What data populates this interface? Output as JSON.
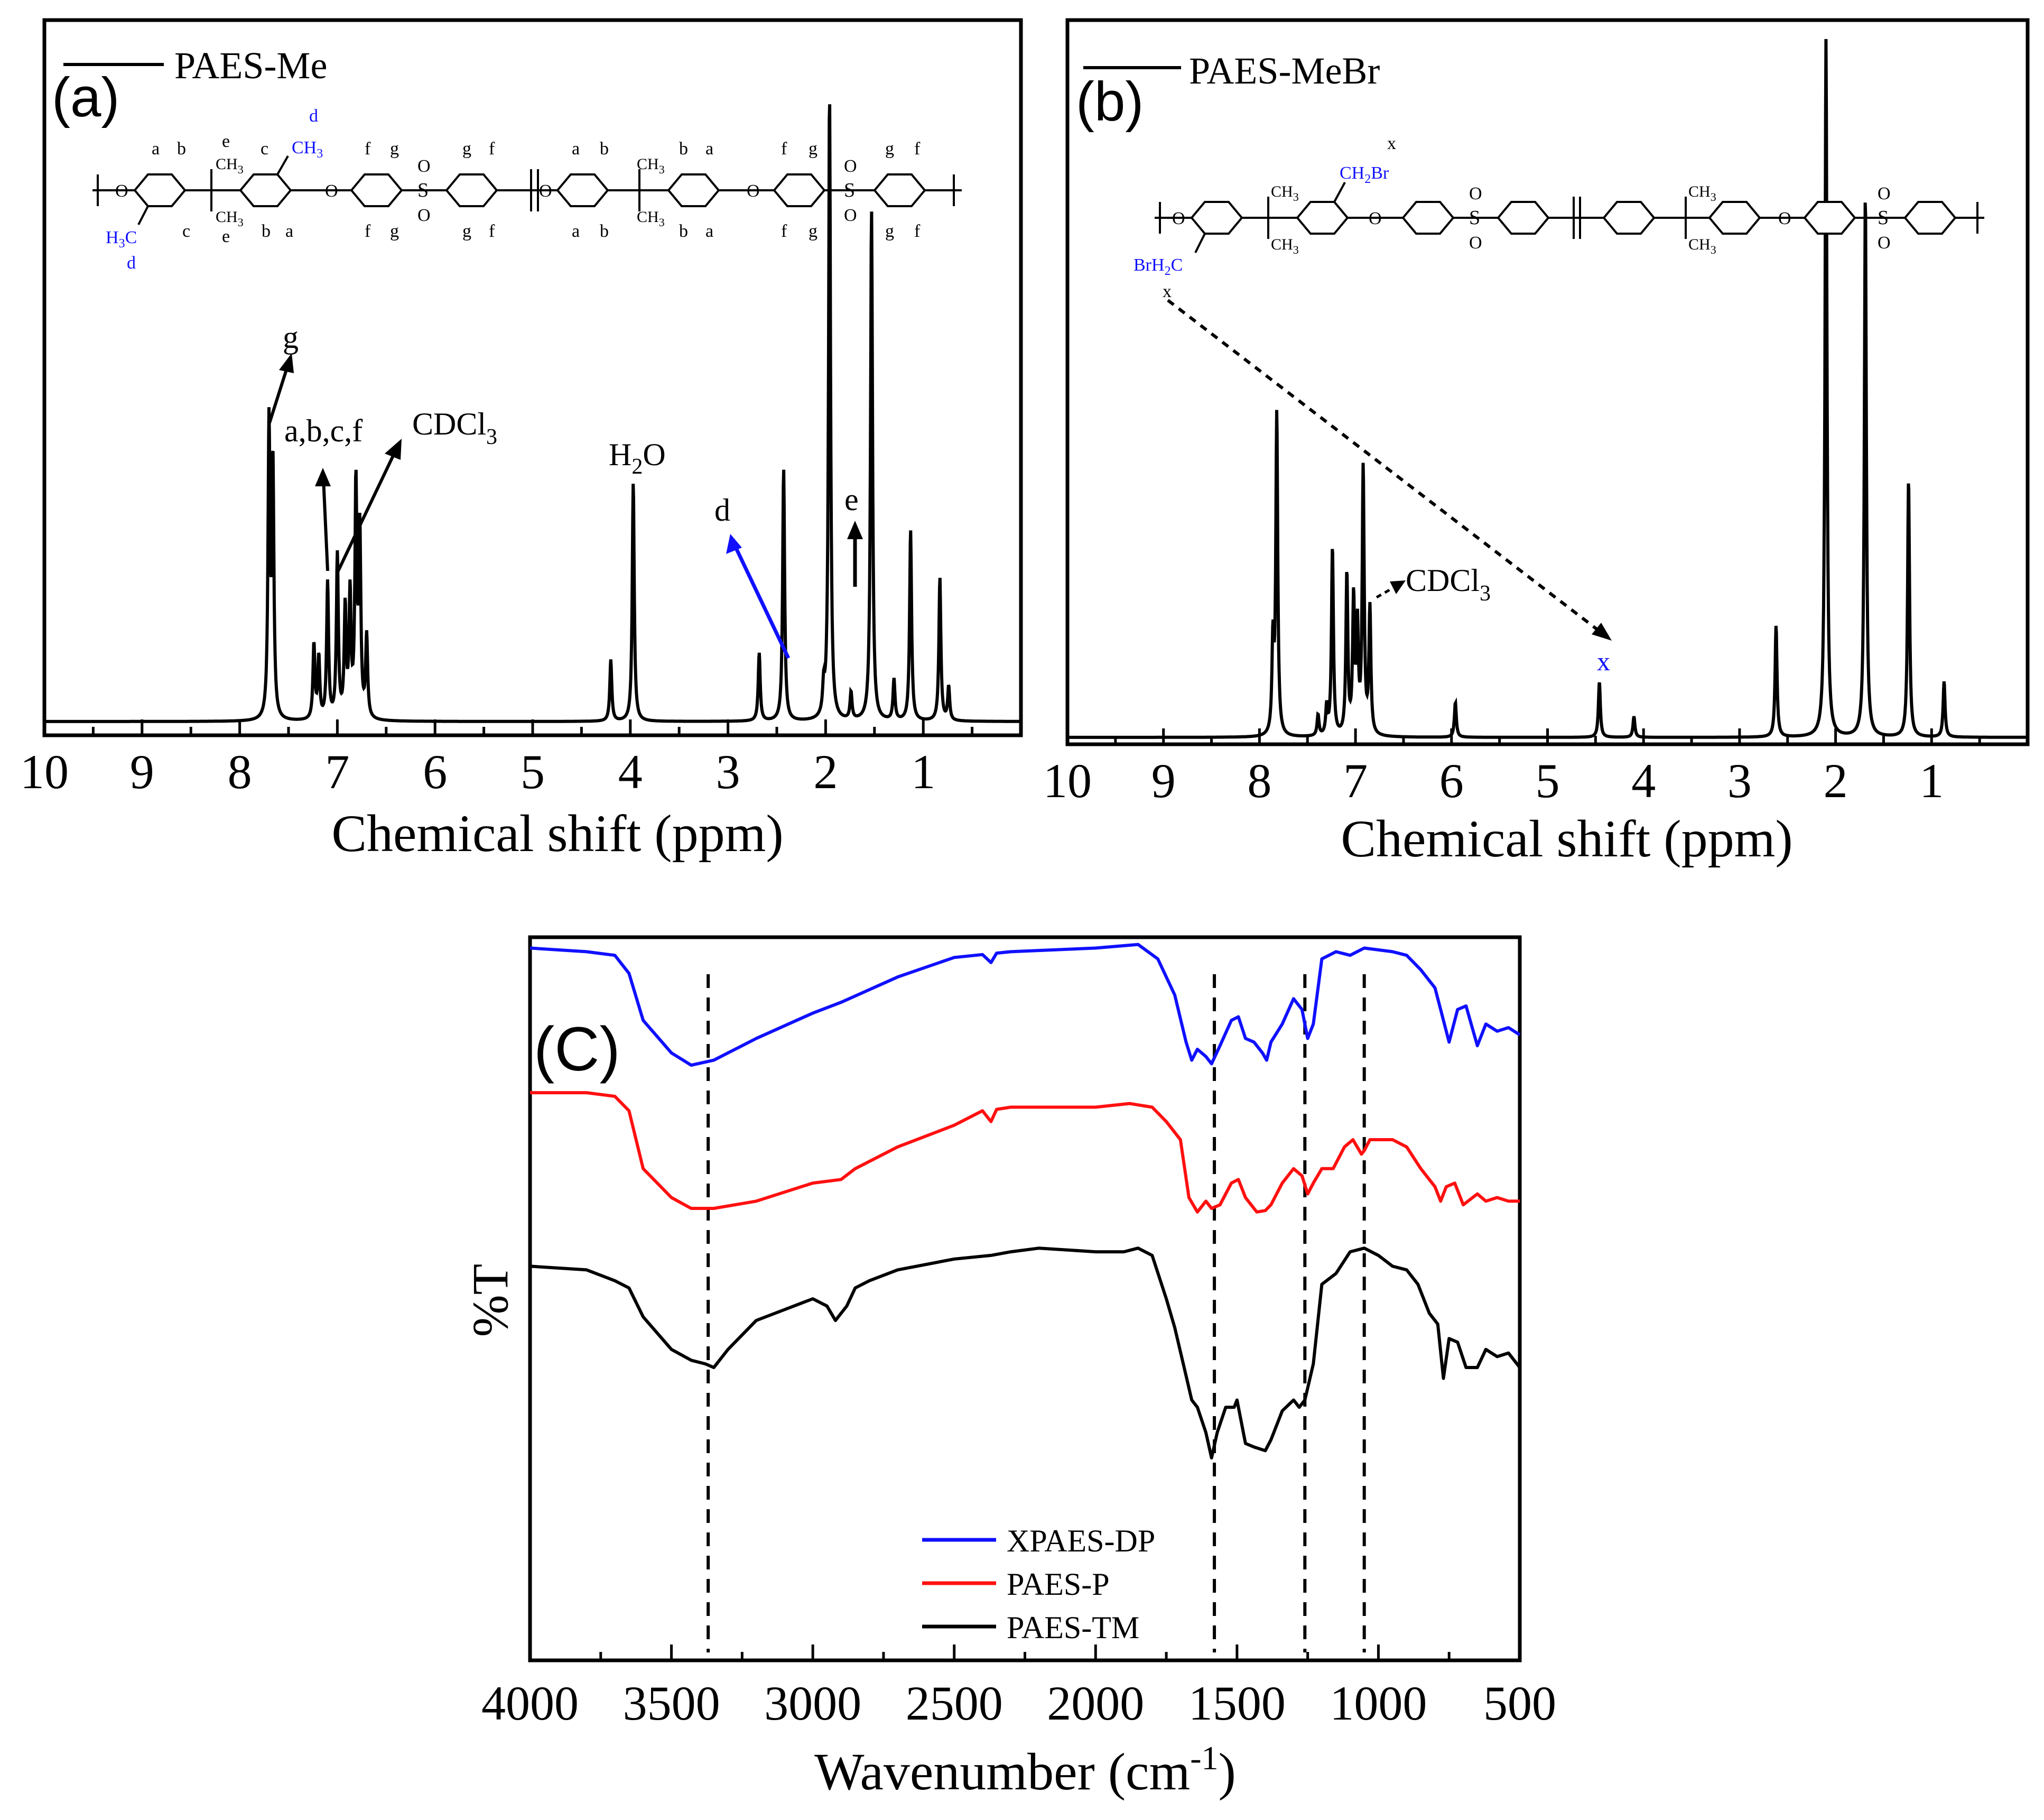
{
  "chart_data": [
    {
      "id": "a",
      "type": "line",
      "panel_label": "(a)",
      "legend": "PAES-Me",
      "xlabel": "Chemical shift (ppm)",
      "xlim": [
        10,
        0
      ],
      "xticks": [
        10,
        9,
        8,
        7,
        6,
        5,
        4,
        3,
        2,
        1
      ],
      "peaks": [
        {
          "ppm": 7.7,
          "h": 0.43
        },
        {
          "ppm": 7.66,
          "h": 0.37
        },
        {
          "ppm": 7.24,
          "h": 0.11
        },
        {
          "ppm": 7.19,
          "h": 0.09
        },
        {
          "ppm": 7.1,
          "h": 0.2
        },
        {
          "ppm": 7.0,
          "h": 0.24
        },
        {
          "ppm": 6.92,
          "h": 0.16
        },
        {
          "ppm": 6.87,
          "h": 0.18
        },
        {
          "ppm": 6.81,
          "h": 0.34
        },
        {
          "ppm": 6.77,
          "h": 0.27
        },
        {
          "ppm": 6.7,
          "h": 0.12
        },
        {
          "ppm": 4.2,
          "h": 0.09
        },
        {
          "ppm": 3.97,
          "h": 0.35
        },
        {
          "ppm": 2.68,
          "h": 0.1
        },
        {
          "ppm": 2.43,
          "h": 0.37
        },
        {
          "ppm": 2.02,
          "h": 0.04
        },
        {
          "ppm": 1.96,
          "h": 0.92
        },
        {
          "ppm": 1.74,
          "h": 0.04
        },
        {
          "ppm": 1.53,
          "h": 0.75
        },
        {
          "ppm": 1.3,
          "h": 0.06
        },
        {
          "ppm": 1.13,
          "h": 0.28
        },
        {
          "ppm": 0.83,
          "h": 0.21
        },
        {
          "ppm": 0.74,
          "h": 0.05
        }
      ],
      "annotations": [
        {
          "text": "g"
        },
        {
          "text": "a,b,c,f"
        },
        {
          "text": "CDCl3"
        },
        {
          "text": "H2O"
        },
        {
          "text": "d"
        },
        {
          "text": "e"
        }
      ]
    },
    {
      "id": "b",
      "type": "line",
      "panel_label": "(b)",
      "legend": "PAES-MeBr",
      "xlabel": "Chemical shift (ppm)",
      "xlim": [
        10,
        0
      ],
      "xticks": [
        10,
        9,
        8,
        7,
        6,
        5,
        4,
        3,
        2,
        1
      ],
      "peaks": [
        {
          "ppm": 7.86,
          "h": 0.13
        },
        {
          "ppm": 7.82,
          "h": 0.46
        },
        {
          "ppm": 7.39,
          "h": 0.03
        },
        {
          "ppm": 7.3,
          "h": 0.04
        },
        {
          "ppm": 7.24,
          "h": 0.27
        },
        {
          "ppm": 7.09,
          "h": 0.23
        },
        {
          "ppm": 7.02,
          "h": 0.19
        },
        {
          "ppm": 6.98,
          "h": 0.15
        },
        {
          "ppm": 6.92,
          "h": 0.38
        },
        {
          "ppm": 6.85,
          "h": 0.18
        },
        {
          "ppm": 5.96,
          "h": 0.05
        },
        {
          "ppm": 4.46,
          "h": 0.08
        },
        {
          "ppm": 4.1,
          "h": 0.03
        },
        {
          "ppm": 2.62,
          "h": 0.16
        },
        {
          "ppm": 2.1,
          "h": 1.0
        },
        {
          "ppm": 1.69,
          "h": 0.78
        },
        {
          "ppm": 1.24,
          "h": 0.37
        },
        {
          "ppm": 0.87,
          "h": 0.08
        }
      ],
      "annotations": [
        {
          "text": "CDCl3"
        },
        {
          "text": "x"
        }
      ]
    },
    {
      "id": "c",
      "type": "line",
      "panel_label": "(C)",
      "ylabel": "%T",
      "xlabel": "Wavenumber (cm-1)",
      "xlim": [
        4000,
        500
      ],
      "xticks": [
        4000,
        3500,
        3000,
        2500,
        2000,
        1500,
        1000,
        500
      ],
      "reference_lines": [
        3370,
        1580,
        1260,
        1050
      ],
      "series": [
        {
          "name": "XPAES-DP",
          "color": "#1010ff",
          "x": [
            4000,
            3800,
            3700,
            3650,
            3600,
            3500,
            3430,
            3350,
            3200,
            3000,
            2900,
            2700,
            2500,
            2400,
            2370,
            2350,
            2300,
            2000,
            1850,
            1780,
            1720,
            1680,
            1660,
            1640,
            1610,
            1590,
            1560,
            1520,
            1495,
            1470,
            1440,
            1410,
            1395,
            1380,
            1340,
            1300,
            1270,
            1250,
            1230,
            1200,
            1150,
            1100,
            1050,
            950,
            900,
            850,
            800,
            780,
            750,
            720,
            690,
            650,
            620,
            580,
            540,
            500
          ],
          "y": [
            0.985,
            0.98,
            0.975,
            0.95,
            0.885,
            0.84,
            0.823,
            0.83,
            0.86,
            0.895,
            0.91,
            0.945,
            0.972,
            0.976,
            0.965,
            0.978,
            0.98,
            0.985,
            0.99,
            0.97,
            0.92,
            0.855,
            0.83,
            0.845,
            0.835,
            0.825,
            0.85,
            0.885,
            0.89,
            0.86,
            0.855,
            0.84,
            0.83,
            0.855,
            0.88,
            0.915,
            0.9,
            0.86,
            0.88,
            0.97,
            0.98,
            0.975,
            0.985,
            0.98,
            0.975,
            0.955,
            0.93,
            0.9,
            0.855,
            0.9,
            0.905,
            0.85,
            0.88,
            0.87,
            0.875,
            0.865
          ]
        },
        {
          "name": "PAES-P",
          "color": "#ff1010",
          "x": [
            4000,
            3800,
            3700,
            3650,
            3600,
            3500,
            3430,
            3350,
            3200,
            3000,
            2900,
            2850,
            2700,
            2500,
            2400,
            2370,
            2350,
            2300,
            2000,
            1880,
            1800,
            1750,
            1700,
            1670,
            1640,
            1610,
            1590,
            1560,
            1520,
            1495,
            1470,
            1430,
            1400,
            1380,
            1340,
            1300,
            1270,
            1250,
            1230,
            1200,
            1160,
            1120,
            1090,
            1060,
            1050,
            1030,
            980,
            950,
            900,
            850,
            800,
            780,
            760,
            730,
            700,
            650,
            620,
            580,
            540,
            500
          ],
          "y": [
            0.785,
            0.785,
            0.78,
            0.76,
            0.68,
            0.64,
            0.625,
            0.625,
            0.635,
            0.66,
            0.665,
            0.68,
            0.71,
            0.74,
            0.76,
            0.745,
            0.762,
            0.765,
            0.765,
            0.77,
            0.765,
            0.745,
            0.72,
            0.64,
            0.62,
            0.635,
            0.625,
            0.63,
            0.66,
            0.665,
            0.64,
            0.62,
            0.622,
            0.63,
            0.66,
            0.68,
            0.67,
            0.645,
            0.66,
            0.68,
            0.68,
            0.71,
            0.72,
            0.7,
            0.705,
            0.72,
            0.72,
            0.72,
            0.71,
            0.68,
            0.655,
            0.635,
            0.655,
            0.66,
            0.63,
            0.645,
            0.635,
            0.64,
            0.635,
            0.635
          ]
        },
        {
          "name": "PAES-TM",
          "color": "#000000",
          "x": [
            4000,
            3800,
            3700,
            3650,
            3600,
            3500,
            3430,
            3380,
            3350,
            3300,
            3200,
            3100,
            3000,
            2950,
            2920,
            2880,
            2850,
            2800,
            2700,
            2500,
            2370,
            2300,
            2200,
            2000,
            1900,
            1850,
            1800,
            1750,
            1720,
            1690,
            1660,
            1640,
            1610,
            1590,
            1570,
            1540,
            1510,
            1500,
            1470,
            1440,
            1400,
            1380,
            1340,
            1300,
            1280,
            1260,
            1230,
            1200,
            1150,
            1100,
            1050,
            1000,
            950,
            900,
            860,
            820,
            790,
            770,
            750,
            720,
            690,
            650,
            620,
            580,
            540,
            500
          ],
          "y": [
            0.545,
            0.54,
            0.525,
            0.515,
            0.475,
            0.43,
            0.415,
            0.41,
            0.405,
            0.43,
            0.47,
            0.485,
            0.5,
            0.49,
            0.47,
            0.49,
            0.515,
            0.525,
            0.54,
            0.555,
            0.56,
            0.565,
            0.57,
            0.565,
            0.565,
            0.57,
            0.56,
            0.5,
            0.46,
            0.41,
            0.36,
            0.35,
            0.315,
            0.28,
            0.315,
            0.35,
            0.35,
            0.36,
            0.3,
            0.295,
            0.29,
            0.305,
            0.345,
            0.36,
            0.35,
            0.36,
            0.41,
            0.52,
            0.535,
            0.565,
            0.57,
            0.56,
            0.545,
            0.54,
            0.52,
            0.48,
            0.465,
            0.39,
            0.445,
            0.44,
            0.405,
            0.405,
            0.43,
            0.42,
            0.425,
            0.405
          ]
        }
      ]
    }
  ],
  "labels": {
    "a": {
      "panel": "(a)",
      "legend": "PAES-Me",
      "xlabel": "Chemical shift (ppm)",
      "ann_g": "g",
      "ann_abcf": "a,b,c,f",
      "ann_cdcl": "CDCl",
      "ann_cdcl_sub": "3",
      "ann_h": "H",
      "ann_h_sub": "2",
      "ann_o": "O",
      "ann_d": "d",
      "ann_e": "e"
    },
    "b": {
      "panel": "(b)",
      "legend": "PAES-MeBr",
      "xlabel": "Chemical shift (ppm)",
      "ann_cdcl": "CDCl",
      "ann_cdcl_sub": "3",
      "ann_x": "x"
    },
    "c": {
      "panel": "(C)",
      "ylabel": "%T",
      "xlabel": "Wavenumber (cm",
      "xlabel_sup": "-1",
      "xlabel_end": ")",
      "legend": [
        "XPAES-DP",
        "PAES-P",
        "PAES-TM"
      ]
    }
  },
  "structures": {
    "a": {
      "O": "O",
      "S": "S",
      "a": "a",
      "b": "b",
      "c": "c",
      "d": "d",
      "e": "e",
      "f": "f",
      "g": "g",
      "CH": "CH",
      "three": "3",
      "H": "H",
      "C": "C"
    },
    "b": {
      "O": "O",
      "S": "S",
      "x": "x",
      "CH": "CH",
      "three": "3",
      "two": "2",
      "Br": "Br",
      "BrH": "BrH",
      "C": "C"
    }
  },
  "colors": {
    "blue": "#1010ff",
    "red": "#ff1010",
    "black": "#000000"
  }
}
